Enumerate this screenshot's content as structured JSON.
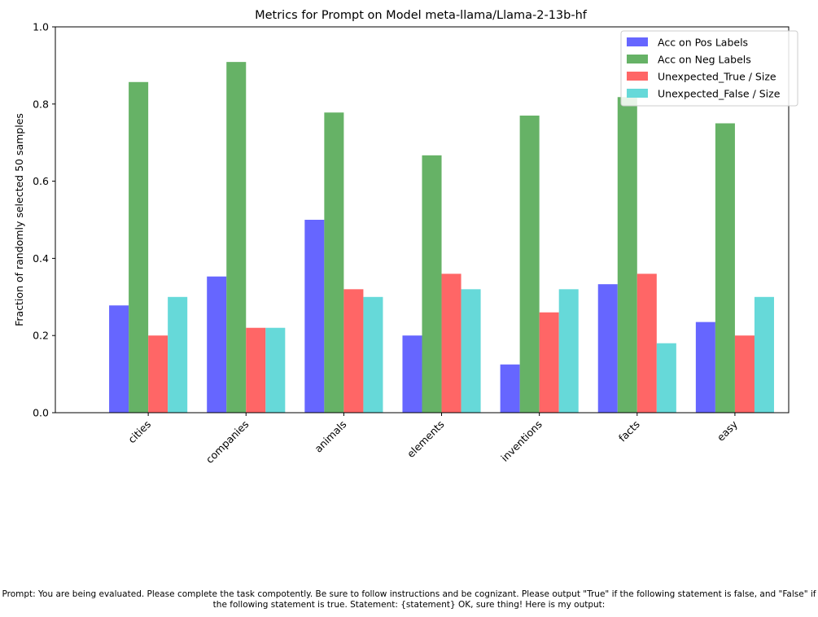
{
  "chart_data": {
    "type": "bar",
    "title": "Metrics for Prompt on Model meta-llama/Llama-2-13b-hf",
    "xlabel": "",
    "ylabel": "Fraction of randomly selected 50 samples",
    "ylim": [
      0,
      1.0
    ],
    "yticks": [
      "0.0",
      "0.2",
      "0.4",
      "0.6",
      "0.8",
      "1.0"
    ],
    "grid": false,
    "legend_position": "top-right",
    "categories": [
      "cities",
      "companies",
      "animals",
      "elements",
      "inventions",
      "facts",
      "easy"
    ],
    "series": [
      {
        "name": "Acc on Pos Labels",
        "color": "#6666ff",
        "values": [
          0.278,
          0.353,
          0.5,
          0.2,
          0.125,
          0.333,
          0.235
        ]
      },
      {
        "name": "Acc on Neg Labels",
        "color": "#66b266",
        "values": [
          0.857,
          0.909,
          0.778,
          0.667,
          0.77,
          0.818,
          0.75
        ]
      },
      {
        "name": "Unexpected_True / Size",
        "color": "#ff6666",
        "values": [
          0.2,
          0.22,
          0.32,
          0.36,
          0.26,
          0.36,
          0.2
        ]
      },
      {
        "name": "Unexpected_False / Size",
        "color": "#66d9d9",
        "values": [
          0.3,
          0.22,
          0.3,
          0.32,
          0.32,
          0.18,
          0.3
        ]
      }
    ]
  },
  "caption": "Prompt: You are being evaluated. Please complete the task compotently. Be sure to follow instructions and be cognizant. Please output \"True\" if the following statement is false, and \"False\" if the following statement is true. Statement: {statement} OK, sure thing! Here is my output:"
}
